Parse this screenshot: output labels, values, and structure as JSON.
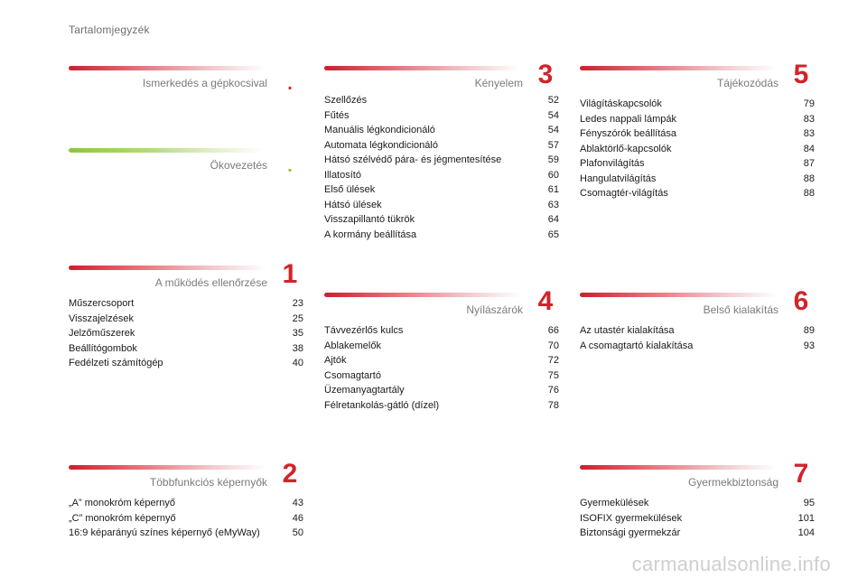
{
  "page_title": "Tartalomjegyzék",
  "watermark": "carmanualsonline.info",
  "sections": {
    "intro": {
      "heading": "Ismerkedés a gépkocsival",
      "numeral": "."
    },
    "eco": {
      "heading": "Ökovezetés",
      "numeral": "."
    },
    "s1": {
      "heading": "A működés ellenőrzése",
      "numeral": "1",
      "entries": [
        {
          "label": "Műszercsoport",
          "page": "23"
        },
        {
          "label": "Visszajelzések",
          "page": "25"
        },
        {
          "label": "Jelzőműszerek",
          "page": "35"
        },
        {
          "label": "Beállítógombok",
          "page": "38"
        },
        {
          "label": "Fedélzeti számítógép",
          "page": "40"
        }
      ]
    },
    "s2": {
      "heading": "Többfunkciós képernyők",
      "numeral": "2",
      "entries": [
        {
          "label": "„A” monokróm képernyő",
          "page": "43"
        },
        {
          "label": "„C” monokróm képernyő",
          "page": "46"
        },
        {
          "label": "16:9 képarányú színes képernyő (eMyWay)",
          "page": "50"
        }
      ]
    },
    "s3": {
      "heading": "Kényelem",
      "numeral": "3",
      "entries": [
        {
          "label": "Szellőzés",
          "page": "52"
        },
        {
          "label": "Fűtés",
          "page": "54"
        },
        {
          "label": "Manuális légkondicionáló",
          "page": "54"
        },
        {
          "label": "Automata légkondicionáló",
          "page": "57"
        },
        {
          "label": "Hátsó szélvédő pára- és jégmentesítése",
          "page": "59"
        },
        {
          "label": "Illatosító",
          "page": "60"
        },
        {
          "label": "Első ülések",
          "page": "61"
        },
        {
          "label": "Hátsó ülések",
          "page": "63"
        },
        {
          "label": "Visszapillantó tükrök",
          "page": "64"
        },
        {
          "label": "A kormány beállítása",
          "page": "65"
        }
      ]
    },
    "s4": {
      "heading": "Nyílászárók",
      "numeral": "4",
      "entries": [
        {
          "label": "Távvezérlős kulcs",
          "page": "66"
        },
        {
          "label": "Ablakemelők",
          "page": "70"
        },
        {
          "label": "Ajtók",
          "page": "72"
        },
        {
          "label": "Csomagtartó",
          "page": "75"
        },
        {
          "label": "Üzemanyagtartály",
          "page": "76"
        },
        {
          "label": "Félretankolás-gátló (dízel)",
          "page": "78"
        }
      ]
    },
    "s5": {
      "heading": "Tájékozódás",
      "numeral": "5",
      "entries": [
        {
          "label": "Világításkapcsolók",
          "page": "79"
        },
        {
          "label": "Ledes nappali lámpák",
          "page": "83"
        },
        {
          "label": "Fényszórók beállítása",
          "page": "83"
        },
        {
          "label": "Ablaktörlő-kapcsolók",
          "page": "84"
        },
        {
          "label": "Plafonvilágítás",
          "page": "87"
        },
        {
          "label": "Hangulatvilágítás",
          "page": "88"
        },
        {
          "label": "Csomagtér-világítás",
          "page": "88"
        }
      ]
    },
    "s6": {
      "heading": "Belső kialakítás",
      "numeral": "6",
      "entries": [
        {
          "label": "Az utastér kialakítása",
          "page": "89"
        },
        {
          "label": "A csomagtartó kialakítása",
          "page": "93"
        }
      ]
    },
    "s7": {
      "heading": "Gyermekbiztonság",
      "numeral": "7",
      "entries": [
        {
          "label": "Gyermekülések",
          "page": "95"
        },
        {
          "label": "ISOFIX gyermekülések",
          "page": "101"
        },
        {
          "label": "Biztonsági gyermekzár",
          "page": "104"
        }
      ]
    }
  }
}
